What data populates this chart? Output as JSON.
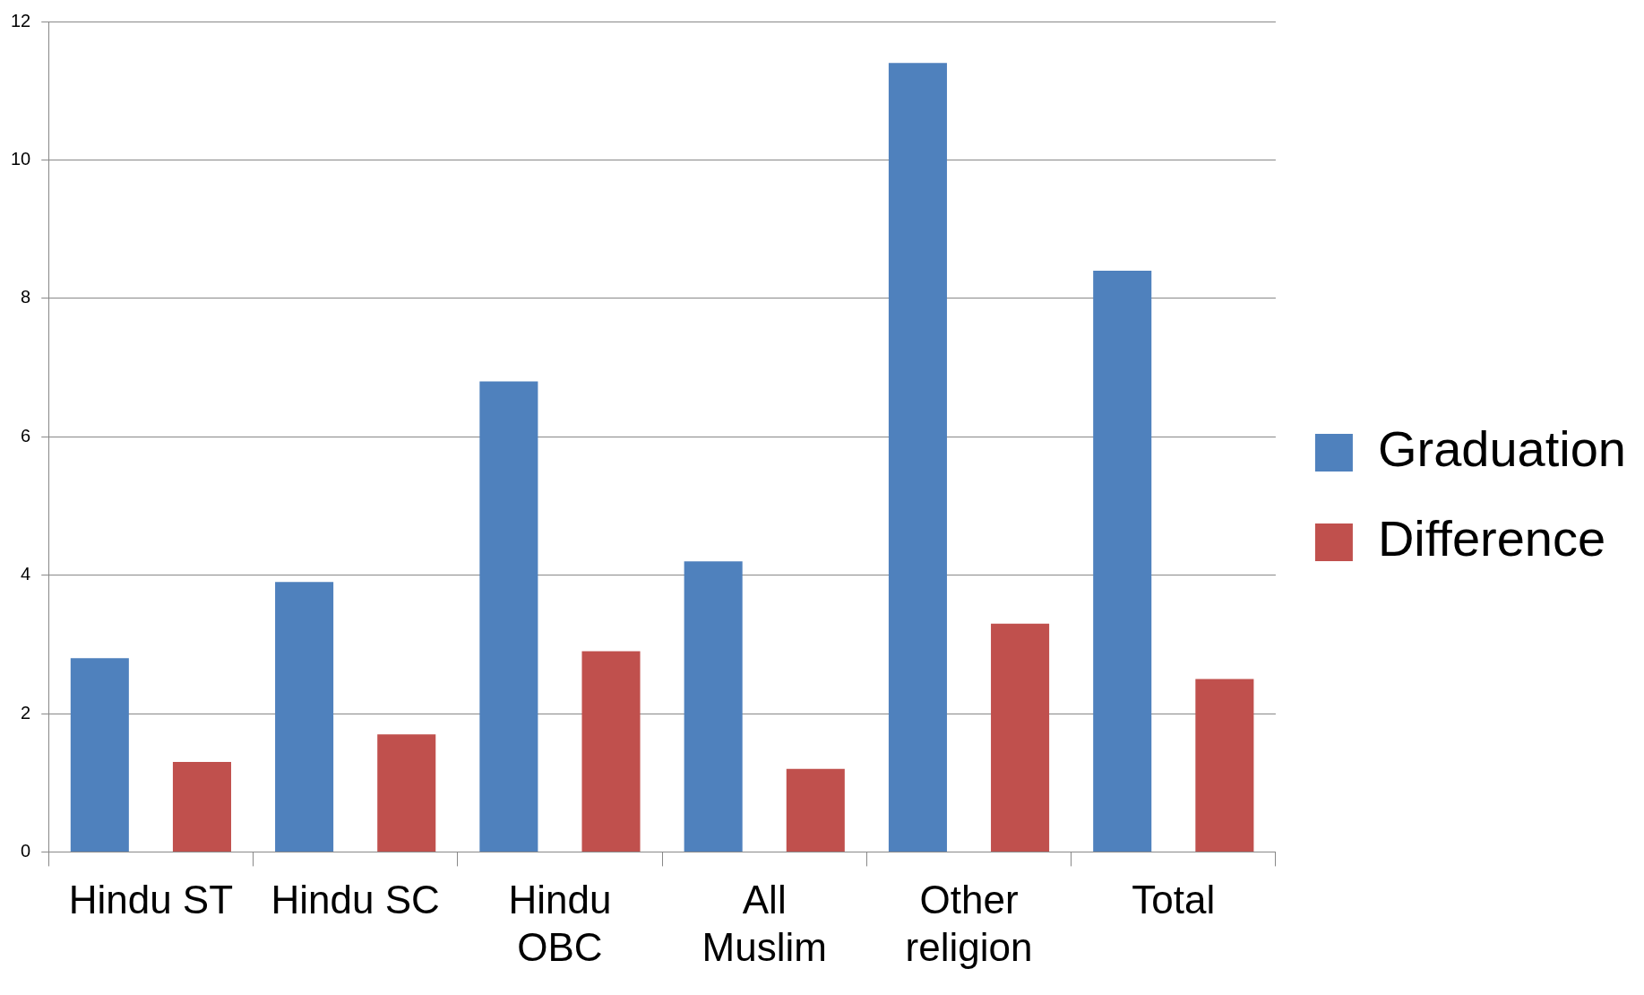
{
  "chart_data": {
    "type": "bar",
    "categories": [
      "Hindu ST",
      "Hindu SC",
      "Hindu OBC",
      "All Muslim",
      "Other religion",
      "Total"
    ],
    "series": [
      {
        "name": "Graduation",
        "color": "#4f81bd",
        "values": [
          2.8,
          3.9,
          6.8,
          4.2,
          11.4,
          8.4
        ]
      },
      {
        "name": "Difference",
        "color": "#c0504d",
        "values": [
          1.3,
          1.7,
          2.9,
          1.2,
          3.3,
          2.5
        ]
      }
    ],
    "ylim": [
      0,
      12
    ],
    "yticks": [
      0,
      2,
      4,
      6,
      8,
      10,
      12
    ],
    "grid": "y",
    "legend": "right"
  }
}
